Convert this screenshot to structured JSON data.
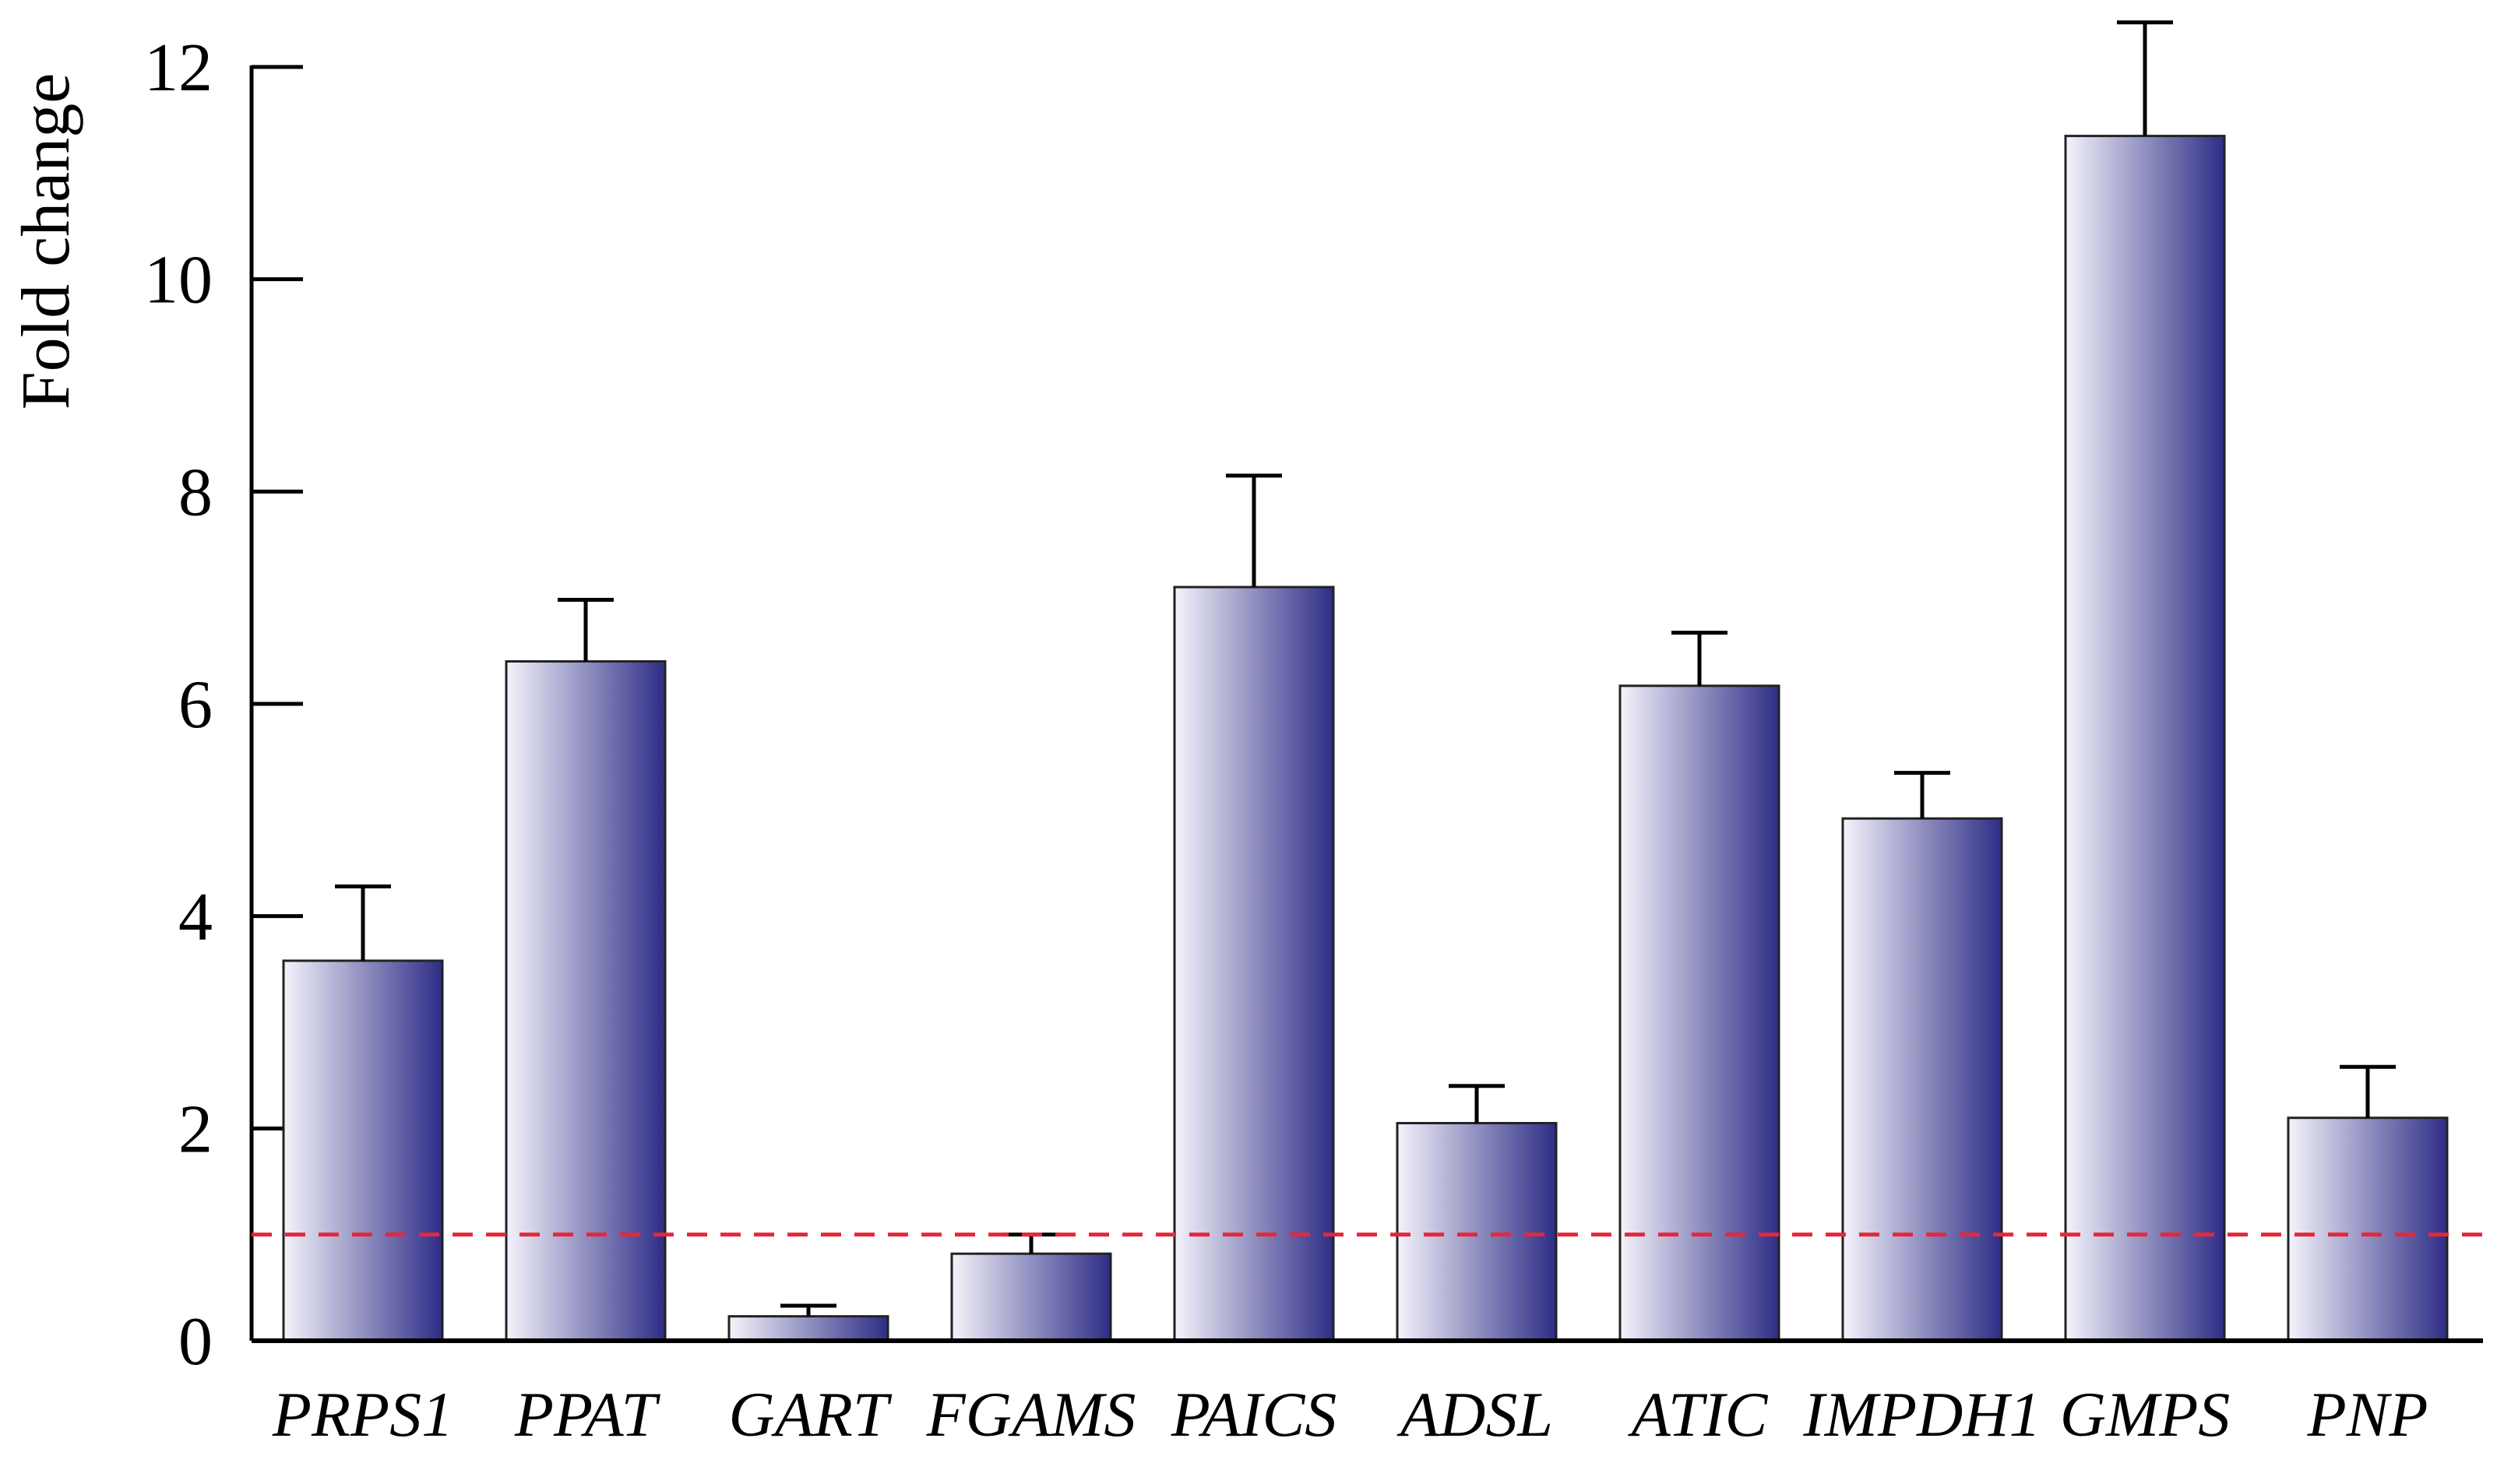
{
  "chart_data": {
    "type": "bar",
    "title": "",
    "xlabel": "",
    "ylabel": "Fold change",
    "ylim": [
      0,
      12
    ],
    "yticks": [
      0,
      2,
      4,
      6,
      8,
      10,
      12
    ],
    "categories": [
      "PRPS1",
      "PPAT",
      "GART",
      "FGAMS",
      "PAICS",
      "ADSL",
      "ATIC",
      "IMPDH1",
      "GMPS",
      "PNP"
    ],
    "values": [
      3.58,
      6.4,
      0.23,
      0.82,
      7.1,
      2.05,
      6.17,
      4.92,
      11.35,
      2.1
    ],
    "errors": [
      0.7,
      0.58,
      0.1,
      0.18,
      1.05,
      0.35,
      0.5,
      0.43,
      1.07,
      0.48
    ],
    "reference_line": {
      "value": 1,
      "style": "dashed",
      "color": "#e8263a"
    },
    "grid": false,
    "legend": "none",
    "colors": {
      "bar_light": "#f4f3fb",
      "bar_dark": "#2e2d86",
      "axis": "#000000",
      "bar_edge": "#222222"
    }
  }
}
